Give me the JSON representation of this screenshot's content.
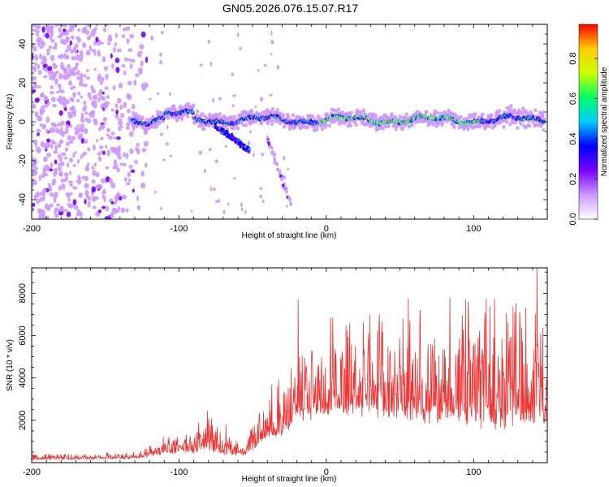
{
  "figure_title": "GN05.2026.076.15.07.R17",
  "colors": {
    "snr_line": "#ee3333",
    "frame": "#000000",
    "background": "#ffffff"
  },
  "chart_data": [
    {
      "type": "heatmap",
      "title": "GN05.2026.076.15.07.R17",
      "xlabel": "Height of straight line (km)",
      "ylabel": "Frequency (Hz)",
      "xlim": [
        -200,
        150
      ],
      "ylim": [
        -50,
        50
      ],
      "x_ticks": [
        -200,
        -100,
        0,
        100
      ],
      "y_ticks": [
        -40,
        -20,
        0,
        20,
        40
      ],
      "x_tick_labels": [
        "-200",
        "-100",
        "0",
        "100"
      ],
      "y_tick_labels": [
        "-40",
        "-20",
        "0",
        "20",
        "40"
      ],
      "colorbar": {
        "label": "Normalized spectral amplitude",
        "range": [
          0,
          0.97
        ],
        "ticks": [
          0,
          0.2,
          0.4,
          0.6,
          0.8
        ],
        "tick_labels": [
          "0.0",
          "0.2",
          "0.4",
          "0.6",
          "0.8"
        ],
        "colormap": [
          "#ffffff",
          "#cc99ff",
          "#7700ff",
          "#0000ff",
          "#00ccff",
          "#00ff66",
          "#ccff00",
          "#ffcc00",
          "#ff0000"
        ]
      },
      "features": [
        {
          "name": "main trace",
          "x_range": [
            -132,
            148
          ],
          "frequency_hz": 1,
          "peak_amplitude": 0.9
        },
        {
          "name": "descending branch 1",
          "from": [
            -75,
            -2
          ],
          "to": [
            -52,
            -15
          ]
        },
        {
          "name": "descending branch 2",
          "from": [
            -40,
            -8
          ],
          "to": [
            -24,
            -42
          ]
        },
        {
          "name": "scattered noise",
          "x_range": [
            -200,
            -122
          ],
          "y_range": [
            -50,
            50
          ]
        }
      ]
    },
    {
      "type": "line",
      "xlabel": "Height of straight line (km)",
      "ylabel": "SNR (10 * v/v)",
      "xlim": [
        -200,
        150
      ],
      "ylim": [
        0,
        9200
      ],
      "x_ticks": [
        -200,
        -100,
        0,
        100
      ],
      "y_ticks": [
        2000,
        4000,
        6000,
        8000
      ],
      "x_tick_labels": [
        "-200",
        "-100",
        "0",
        "100"
      ],
      "y_tick_labels": [
        "2000",
        "4000",
        "6000",
        "8000"
      ],
      "series": [
        {
          "name": "SNR",
          "color": "#ee3333",
          "envelope": [
            {
              "x": -200,
              "base": 150,
              "amp": 180
            },
            {
              "x": -130,
              "base": 200,
              "amp": 200
            },
            {
              "x": -110,
              "base": 450,
              "amp": 500
            },
            {
              "x": -90,
              "base": 550,
              "amp": 900
            },
            {
              "x": -80,
              "base": 650,
              "amp": 1500
            },
            {
              "x": -70,
              "base": 450,
              "amp": 800
            },
            {
              "x": -55,
              "base": 400,
              "amp": 500
            },
            {
              "x": -42,
              "base": 1100,
              "amp": 1600
            },
            {
              "x": -30,
              "base": 1500,
              "amp": 2000
            },
            {
              "x": -20,
              "base": 2000,
              "amp": 2600
            },
            {
              "x": -5,
              "base": 2500,
              "amp": 2300
            },
            {
              "x": 10,
              "base": 2600,
              "amp": 3000
            },
            {
              "x": 40,
              "base": 2500,
              "amp": 3600
            },
            {
              "x": 80,
              "base": 2300,
              "amp": 3700
            },
            {
              "x": 120,
              "base": 2100,
              "amp": 4200
            },
            {
              "x": 150,
              "base": 2300,
              "amp": 4000
            }
          ],
          "peaks": [
            {
              "x": -19,
              "y": 7700
            },
            {
              "x": 143,
              "y": 9200
            },
            {
              "x": 84,
              "y": 7800
            },
            {
              "x": 36,
              "y": 7000
            },
            {
              "x": 52,
              "y": 6800
            },
            {
              "x": 111,
              "y": 7400
            },
            {
              "x": 128,
              "y": 7100
            },
            {
              "x": 16,
              "y": 6600
            },
            {
              "x": -78,
              "y": 2100
            },
            {
              "x": -68,
              "y": 1800
            },
            {
              "x": -33,
              "y": 3600
            },
            {
              "x": -10,
              "y": 5300
            }
          ]
        }
      ]
    }
  ]
}
